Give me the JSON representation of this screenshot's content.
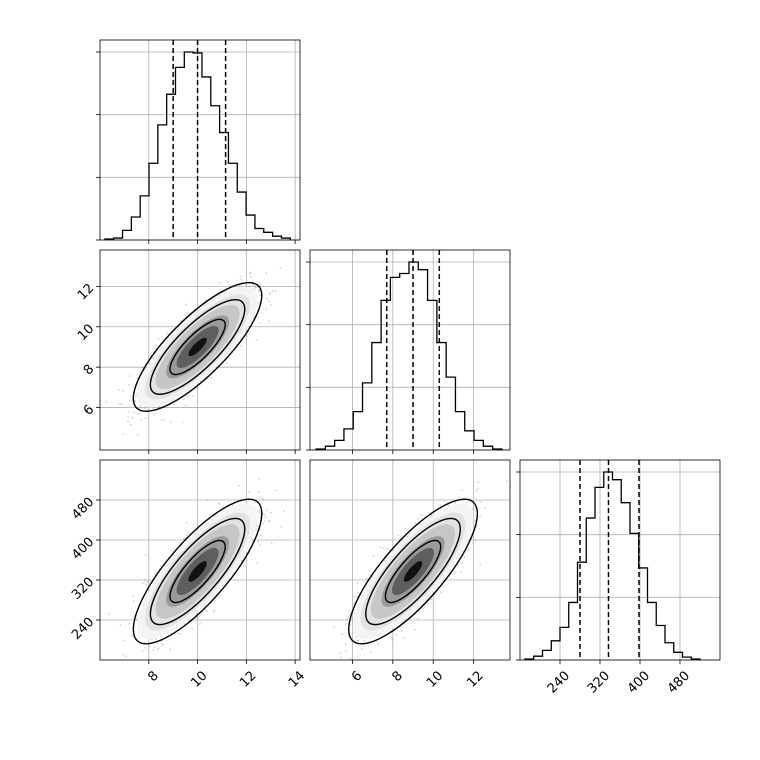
{
  "chart_data": {
    "type": "corner",
    "params": [
      {
        "name": "",
        "range": [
          6.0,
          14.2
        ],
        "ticks": [
          8,
          10,
          12,
          14
        ],
        "quantiles": [
          9.0,
          10.0,
          11.15
        ],
        "hist_range": [
          6.2,
          13.8
        ],
        "hist_counts": [
          0.005,
          0.01,
          0.05,
          0.12,
          0.23,
          0.4,
          0.6,
          0.76,
          0.9,
          0.98,
          0.975,
          0.85,
          0.7,
          0.56,
          0.4,
          0.25,
          0.13,
          0.06,
          0.04,
          0.02,
          0.01
        ]
      },
      {
        "name": "",
        "range": [
          3.9,
          13.8
        ],
        "ticks": [
          6,
          8,
          10,
          12
        ],
        "quantiles": [
          7.7,
          9.0,
          10.3
        ],
        "hist_range": [
          4.2,
          13.4
        ],
        "hist_counts": [
          0.005,
          0.02,
          0.05,
          0.11,
          0.2,
          0.35,
          0.56,
          0.78,
          0.9,
          0.92,
          0.98,
          0.94,
          0.78,
          0.56,
          0.38,
          0.2,
          0.1,
          0.05,
          0.02,
          0.005
        ]
      },
      {
        "name": "",
        "range": [
          160,
          560
        ],
        "ticks": [
          240,
          320,
          400,
          480
        ],
        "quantiles": [
          280,
          337,
          398
        ],
        "hist_range": [
          170,
          520
        ],
        "hist_counts": [
          0.005,
          0.02,
          0.05,
          0.1,
          0.17,
          0.3,
          0.51,
          0.74,
          0.9,
          0.98,
          0.94,
          0.82,
          0.66,
          0.48,
          0.3,
          0.18,
          0.09,
          0.04,
          0.015,
          0.005
        ]
      }
    ],
    "contour_levels": [
      "1-sigma",
      "1.5-sigma",
      "2-sigma"
    ],
    "grid": true,
    "scatter_color": "#7f7f7f",
    "density_color": "#000000",
    "line_color": "#000000"
  }
}
